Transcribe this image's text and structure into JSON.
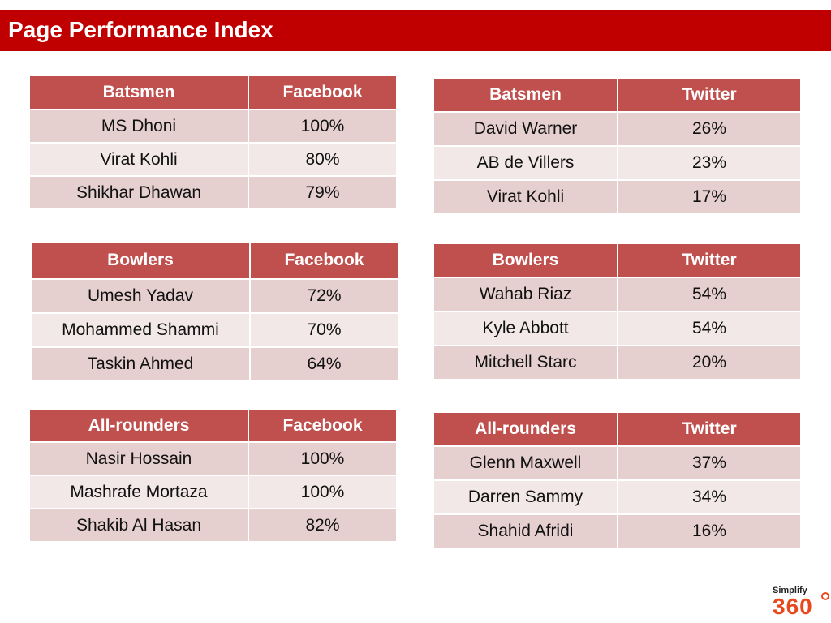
{
  "header": {
    "title": "Page Performance Index"
  },
  "tables": [
    {
      "head": [
        "Batsmen",
        "Facebook"
      ],
      "rows": [
        [
          "MS Dhoni",
          "100%"
        ],
        [
          "Virat Kohli",
          "80%"
        ],
        [
          "Shikhar Dhawan",
          "79%"
        ]
      ]
    },
    {
      "head": [
        "Batsmen",
        "Twitter"
      ],
      "rows": [
        [
          "David Warner",
          "26%"
        ],
        [
          "AB de Villers",
          "23%"
        ],
        [
          "Virat Kohli",
          "17%"
        ]
      ]
    },
    {
      "head": [
        "Bowlers",
        "Facebook"
      ],
      "rows": [
        [
          "Umesh Yadav",
          "72%"
        ],
        [
          "Mohammed Shammi",
          "70%"
        ],
        [
          "Taskin Ahmed",
          "64%"
        ]
      ]
    },
    {
      "head": [
        "Bowlers",
        "Twitter"
      ],
      "rows": [
        [
          "Wahab Riaz",
          "54%"
        ],
        [
          "Kyle Abbott",
          "54%"
        ],
        [
          "Mitchell Starc",
          "20%"
        ]
      ]
    },
    {
      "head": [
        "All-rounders",
        "Facebook"
      ],
      "rows": [
        [
          "Nasir Hossain",
          "100%"
        ],
        [
          "Mashrafe Mortaza",
          "100%"
        ],
        [
          "Shakib Al Hasan",
          "82%"
        ]
      ]
    },
    {
      "head": [
        "All-rounders",
        "Twitter"
      ],
      "rows": [
        [
          "Glenn Maxwell",
          "37%"
        ],
        [
          "Darren Sammy",
          "34%"
        ],
        [
          "Shahid Afridi",
          "16%"
        ]
      ]
    }
  ],
  "logo": {
    "line1": "Simplify",
    "line2": "360"
  },
  "colors": {
    "title_bar": "#c00000",
    "table_header": "#c0504d",
    "row_dark": "#e6cfcf",
    "row_light": "#f2e8e8"
  }
}
